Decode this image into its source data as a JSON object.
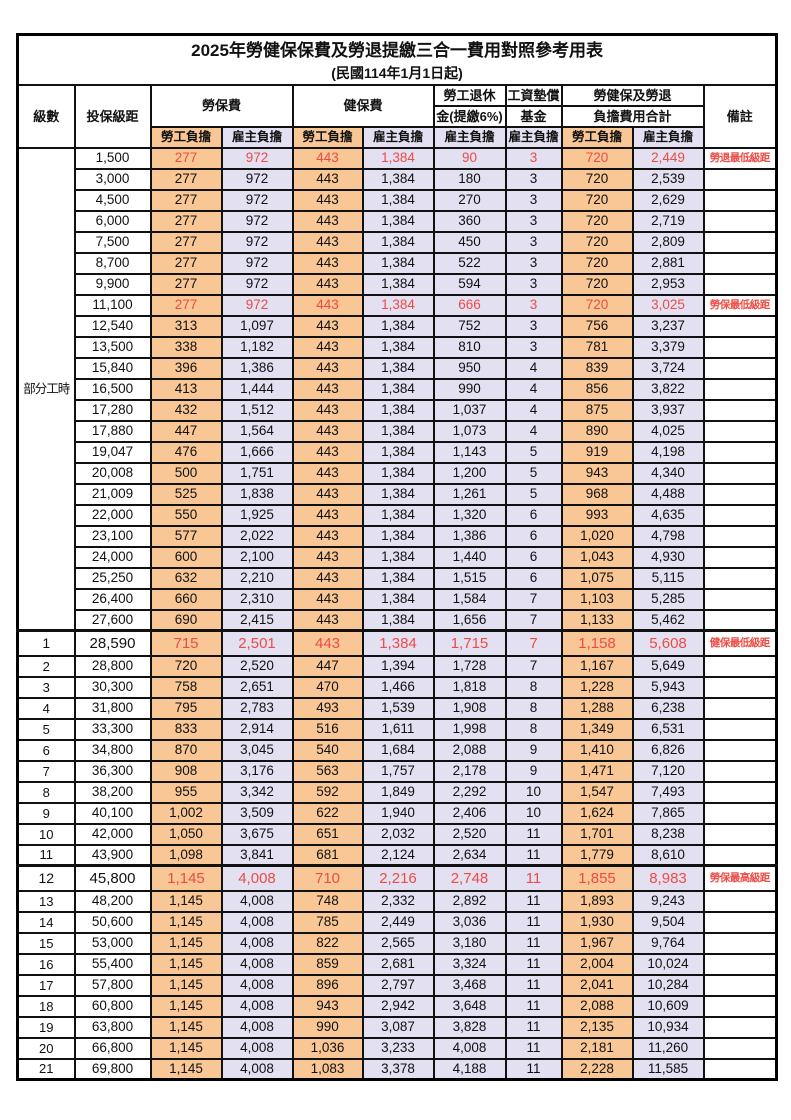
{
  "title": {
    "main": "2025年勞健保保費及勞退提繳三合一費用對照參考用表",
    "sub": "(民國114年1月1日起)"
  },
  "colors": {
    "employee_bg": "#F9C795",
    "employer_bg": "#E3E0F2",
    "highlight_red": "#EE4B44"
  },
  "table": {
    "headers": {
      "level": "級數",
      "bracket": "投保級距",
      "labor_ins": "勞保費",
      "health_ins": "健保費",
      "pension_l1": "勞工退休",
      "pension_l2": "金(提繳6%)",
      "wage_fund_l1": "工資墊償",
      "wage_fund_l2": "基金",
      "total_l1": "勞健保及勞退",
      "total_l2": "負擔費用合計",
      "remark": "備註",
      "employee": "勞工負擔",
      "employer": "雇主負擔"
    },
    "part_time_label": "部分工時",
    "part_time_rowspan": 23,
    "rows": [
      {
        "pt": true,
        "bk": "1,500",
        "v": [
          "277",
          "972",
          "443",
          "1,384",
          "90",
          "3",
          "720",
          "2,449"
        ],
        "red": true,
        "note": "勞退最低級距"
      },
      {
        "pt": true,
        "bk": "3,000",
        "v": [
          "277",
          "972",
          "443",
          "1,384",
          "180",
          "3",
          "720",
          "2,539"
        ]
      },
      {
        "pt": true,
        "bk": "4,500",
        "v": [
          "277",
          "972",
          "443",
          "1,384",
          "270",
          "3",
          "720",
          "2,629"
        ]
      },
      {
        "pt": true,
        "bk": "6,000",
        "v": [
          "277",
          "972",
          "443",
          "1,384",
          "360",
          "3",
          "720",
          "2,719"
        ]
      },
      {
        "pt": true,
        "bk": "7,500",
        "v": [
          "277",
          "972",
          "443",
          "1,384",
          "450",
          "3",
          "720",
          "2,809"
        ]
      },
      {
        "pt": true,
        "bk": "8,700",
        "v": [
          "277",
          "972",
          "443",
          "1,384",
          "522",
          "3",
          "720",
          "2,881"
        ]
      },
      {
        "pt": true,
        "bk": "9,900",
        "v": [
          "277",
          "972",
          "443",
          "1,384",
          "594",
          "3",
          "720",
          "2,953"
        ]
      },
      {
        "pt": true,
        "bk": "11,100",
        "v": [
          "277",
          "972",
          "443",
          "1,384",
          "666",
          "3",
          "720",
          "3,025"
        ],
        "red": true,
        "note": "勞保最低級距"
      },
      {
        "pt": true,
        "bk": "12,540",
        "v": [
          "313",
          "1,097",
          "443",
          "1,384",
          "752",
          "3",
          "756",
          "3,237"
        ]
      },
      {
        "pt": true,
        "bk": "13,500",
        "v": [
          "338",
          "1,182",
          "443",
          "1,384",
          "810",
          "3",
          "781",
          "3,379"
        ]
      },
      {
        "pt": true,
        "bk": "15,840",
        "v": [
          "396",
          "1,386",
          "443",
          "1,384",
          "950",
          "4",
          "839",
          "3,724"
        ]
      },
      {
        "pt": true,
        "bk": "16,500",
        "v": [
          "413",
          "1,444",
          "443",
          "1,384",
          "990",
          "4",
          "856",
          "3,822"
        ]
      },
      {
        "pt": true,
        "bk": "17,280",
        "v": [
          "432",
          "1,512",
          "443",
          "1,384",
          "1,037",
          "4",
          "875",
          "3,937"
        ]
      },
      {
        "pt": true,
        "bk": "17,880",
        "v": [
          "447",
          "1,564",
          "443",
          "1,384",
          "1,073",
          "4",
          "890",
          "4,025"
        ]
      },
      {
        "pt": true,
        "bk": "19,047",
        "v": [
          "476",
          "1,666",
          "443",
          "1,384",
          "1,143",
          "5",
          "919",
          "4,198"
        ]
      },
      {
        "pt": true,
        "bk": "20,008",
        "v": [
          "500",
          "1,751",
          "443",
          "1,384",
          "1,200",
          "5",
          "943",
          "4,340"
        ]
      },
      {
        "pt": true,
        "bk": "21,009",
        "v": [
          "525",
          "1,838",
          "443",
          "1,384",
          "1,261",
          "5",
          "968",
          "4,488"
        ]
      },
      {
        "pt": true,
        "bk": "22,000",
        "v": [
          "550",
          "1,925",
          "443",
          "1,384",
          "1,320",
          "6",
          "993",
          "4,635"
        ]
      },
      {
        "pt": true,
        "bk": "23,100",
        "v": [
          "577",
          "2,022",
          "443",
          "1,384",
          "1,386",
          "6",
          "1,020",
          "4,798"
        ]
      },
      {
        "pt": true,
        "bk": "24,000",
        "v": [
          "600",
          "2,100",
          "443",
          "1,384",
          "1,440",
          "6",
          "1,043",
          "4,930"
        ]
      },
      {
        "pt": true,
        "bk": "25,250",
        "v": [
          "632",
          "2,210",
          "443",
          "1,384",
          "1,515",
          "6",
          "1,075",
          "5,115"
        ]
      },
      {
        "pt": true,
        "bk": "26,400",
        "v": [
          "660",
          "2,310",
          "443",
          "1,384",
          "1,584",
          "7",
          "1,103",
          "5,285"
        ]
      },
      {
        "pt": true,
        "bk": "27,600",
        "v": [
          "690",
          "2,415",
          "443",
          "1,384",
          "1,656",
          "7",
          "1,133",
          "5,462"
        ]
      },
      {
        "lv": "1",
        "bk": "28,590",
        "v": [
          "715",
          "2,501",
          "443",
          "1,384",
          "1,715",
          "7",
          "1,158",
          "5,608"
        ],
        "red": true,
        "tall": true,
        "note": "健保最低級距"
      },
      {
        "lv": "2",
        "bk": "28,800",
        "v": [
          "720",
          "2,520",
          "447",
          "1,394",
          "1,728",
          "7",
          "1,167",
          "5,649"
        ]
      },
      {
        "lv": "3",
        "bk": "30,300",
        "v": [
          "758",
          "2,651",
          "470",
          "1,466",
          "1,818",
          "8",
          "1,228",
          "5,943"
        ]
      },
      {
        "lv": "4",
        "bk": "31,800",
        "v": [
          "795",
          "2,783",
          "493",
          "1,539",
          "1,908",
          "8",
          "1,288",
          "6,238"
        ]
      },
      {
        "lv": "5",
        "bk": "33,300",
        "v": [
          "833",
          "2,914",
          "516",
          "1,611",
          "1,998",
          "8",
          "1,349",
          "6,531"
        ]
      },
      {
        "lv": "6",
        "bk": "34,800",
        "v": [
          "870",
          "3,045",
          "540",
          "1,684",
          "2,088",
          "9",
          "1,410",
          "6,826"
        ]
      },
      {
        "lv": "7",
        "bk": "36,300",
        "v": [
          "908",
          "3,176",
          "563",
          "1,757",
          "2,178",
          "9",
          "1,471",
          "7,120"
        ]
      },
      {
        "lv": "8",
        "bk": "38,200",
        "v": [
          "955",
          "3,342",
          "592",
          "1,849",
          "2,292",
          "10",
          "1,547",
          "7,493"
        ]
      },
      {
        "lv": "9",
        "bk": "40,100",
        "v": [
          "1,002",
          "3,509",
          "622",
          "1,940",
          "2,406",
          "10",
          "1,624",
          "7,865"
        ]
      },
      {
        "lv": "10",
        "bk": "42,000",
        "v": [
          "1,050",
          "3,675",
          "651",
          "2,032",
          "2,520",
          "11",
          "1,701",
          "8,238"
        ]
      },
      {
        "lv": "11",
        "bk": "43,900",
        "v": [
          "1,098",
          "3,841",
          "681",
          "2,124",
          "2,634",
          "11",
          "1,779",
          "8,610"
        ]
      },
      {
        "lv": "12",
        "bk": "45,800",
        "v": [
          "1,145",
          "4,008",
          "710",
          "2,216",
          "2,748",
          "11",
          "1,855",
          "8,983"
        ],
        "red": true,
        "tall": true,
        "note": "勞保最高級距"
      },
      {
        "lv": "13",
        "bk": "48,200",
        "v": [
          "1,145",
          "4,008",
          "748",
          "2,332",
          "2,892",
          "11",
          "1,893",
          "9,243"
        ]
      },
      {
        "lv": "14",
        "bk": "50,600",
        "v": [
          "1,145",
          "4,008",
          "785",
          "2,449",
          "3,036",
          "11",
          "1,930",
          "9,504"
        ]
      },
      {
        "lv": "15",
        "bk": "53,000",
        "v": [
          "1,145",
          "4,008",
          "822",
          "2,565",
          "3,180",
          "11",
          "1,967",
          "9,764"
        ]
      },
      {
        "lv": "16",
        "bk": "55,400",
        "v": [
          "1,145",
          "4,008",
          "859",
          "2,681",
          "3,324",
          "11",
          "2,004",
          "10,024"
        ]
      },
      {
        "lv": "17",
        "bk": "57,800",
        "v": [
          "1,145",
          "4,008",
          "896",
          "2,797",
          "3,468",
          "11",
          "2,041",
          "10,284"
        ]
      },
      {
        "lv": "18",
        "bk": "60,800",
        "v": [
          "1,145",
          "4,008",
          "943",
          "2,942",
          "3,648",
          "11",
          "2,088",
          "10,609"
        ]
      },
      {
        "lv": "19",
        "bk": "63,800",
        "v": [
          "1,145",
          "4,008",
          "990",
          "3,087",
          "3,828",
          "11",
          "2,135",
          "10,934"
        ]
      },
      {
        "lv": "20",
        "bk": "66,800",
        "v": [
          "1,145",
          "4,008",
          "1,036",
          "3,233",
          "4,008",
          "11",
          "2,181",
          "11,260"
        ]
      },
      {
        "lv": "21",
        "bk": "69,800",
        "v": [
          "1,145",
          "4,008",
          "1,083",
          "3,378",
          "4,188",
          "11",
          "2,228",
          "11,585"
        ]
      }
    ]
  }
}
